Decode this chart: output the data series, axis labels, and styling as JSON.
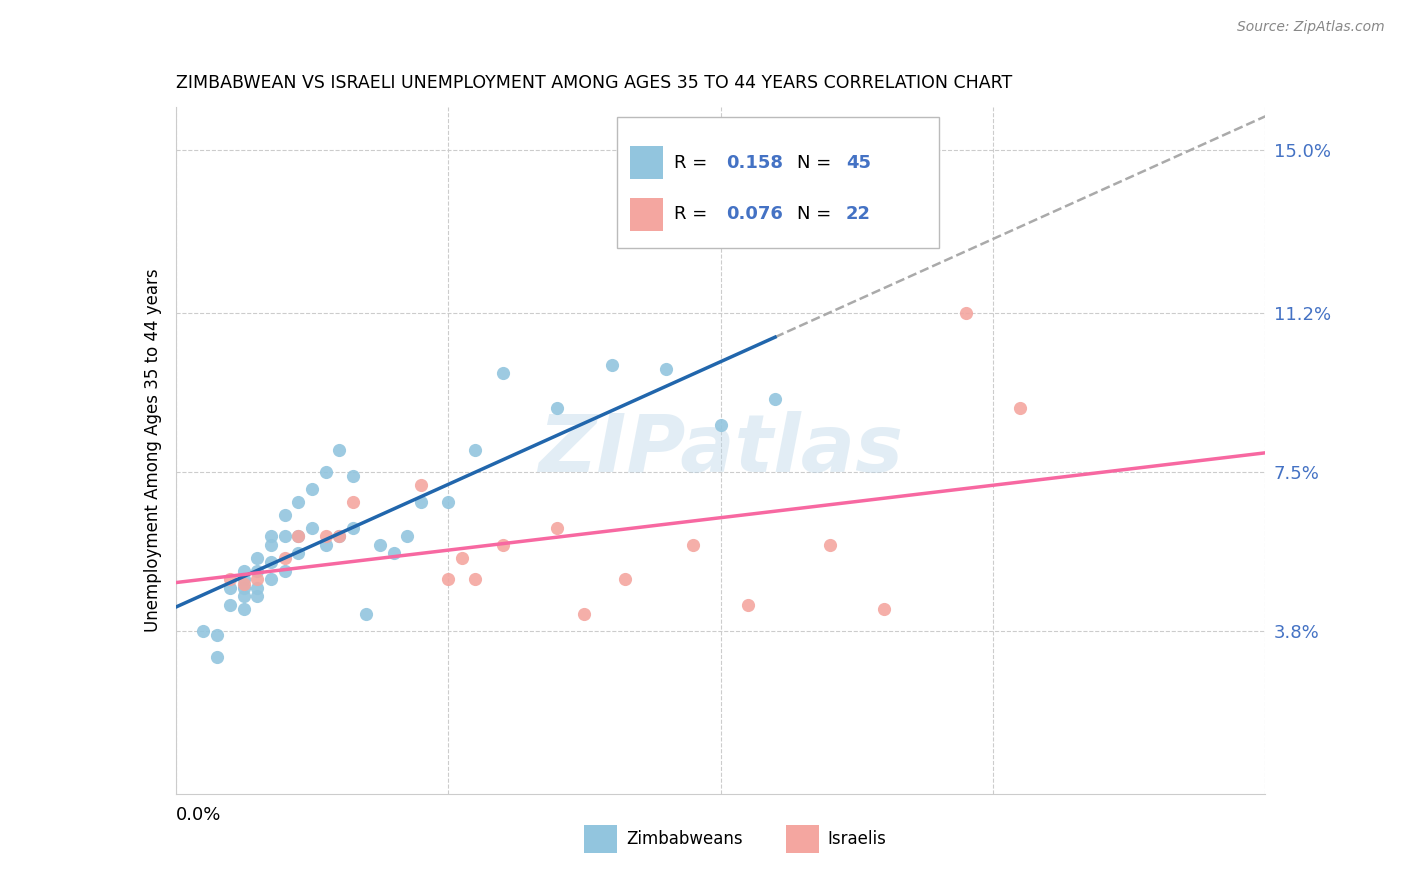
{
  "title": "ZIMBABWEAN VS ISRAELI UNEMPLOYMENT AMONG AGES 35 TO 44 YEARS CORRELATION CHART",
  "source": "Source: ZipAtlas.com",
  "ylabel": "Unemployment Among Ages 35 to 44 years",
  "right_yticks": [
    "15.0%",
    "11.2%",
    "7.5%",
    "3.8%"
  ],
  "right_ytick_vals": [
    0.15,
    0.112,
    0.075,
    0.038
  ],
  "xmin": 0.0,
  "xmax": 0.08,
  "ymin": 0.0,
  "ymax": 0.16,
  "zimbabwe_color": "#92c5de",
  "israel_color": "#f4a6a0",
  "legend_R_zim": "0.158",
  "legend_N_zim": "45",
  "legend_R_isr": "0.076",
  "legend_N_isr": "22",
  "zim_line_color": "#2166ac",
  "isr_line_color": "#f768a1",
  "watermark_text": "ZIPatlas",
  "zim_scatter_x": [
    0.002,
    0.003,
    0.003,
    0.004,
    0.004,
    0.005,
    0.005,
    0.005,
    0.005,
    0.005,
    0.006,
    0.006,
    0.006,
    0.006,
    0.007,
    0.007,
    0.007,
    0.007,
    0.008,
    0.008,
    0.008,
    0.009,
    0.009,
    0.009,
    0.01,
    0.01,
    0.011,
    0.011,
    0.012,
    0.012,
    0.013,
    0.013,
    0.014,
    0.015,
    0.016,
    0.017,
    0.018,
    0.02,
    0.022,
    0.024,
    0.028,
    0.032,
    0.036,
    0.04,
    0.044
  ],
  "zim_scatter_y": [
    0.038,
    0.032,
    0.037,
    0.044,
    0.048,
    0.043,
    0.046,
    0.048,
    0.05,
    0.052,
    0.046,
    0.048,
    0.052,
    0.055,
    0.05,
    0.054,
    0.058,
    0.06,
    0.052,
    0.06,
    0.065,
    0.056,
    0.06,
    0.068,
    0.062,
    0.071,
    0.058,
    0.075,
    0.06,
    0.08,
    0.062,
    0.074,
    0.042,
    0.058,
    0.056,
    0.06,
    0.068,
    0.068,
    0.08,
    0.098,
    0.09,
    0.1,
    0.099,
    0.086,
    0.092
  ],
  "isr_scatter_x": [
    0.004,
    0.005,
    0.006,
    0.008,
    0.009,
    0.011,
    0.012,
    0.013,
    0.018,
    0.02,
    0.021,
    0.022,
    0.024,
    0.028,
    0.03,
    0.033,
    0.038,
    0.042,
    0.048,
    0.052,
    0.058,
    0.062
  ],
  "isr_scatter_y": [
    0.05,
    0.049,
    0.05,
    0.055,
    0.06,
    0.06,
    0.06,
    0.068,
    0.072,
    0.05,
    0.055,
    0.05,
    0.058,
    0.062,
    0.042,
    0.05,
    0.058,
    0.044,
    0.058,
    0.043,
    0.112,
    0.09
  ]
}
